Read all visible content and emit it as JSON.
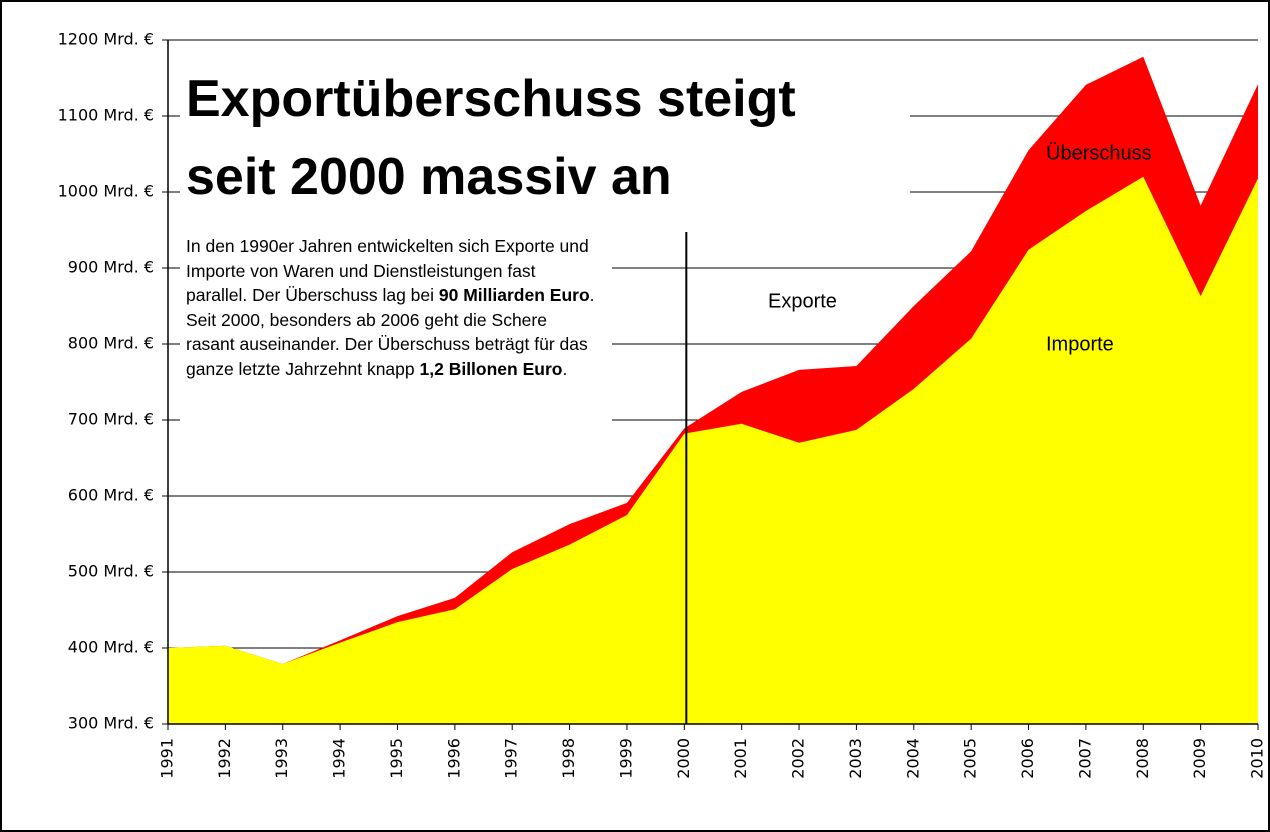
{
  "chart_data": {
    "type": "area",
    "title": "Exportüberschuss steigt seit 2000 massiv an",
    "paragraph": [
      {
        "text": "In den 1990er Jahren  entwickelten sich Exporte und Importe von Waren und Dienstleistungen fast parallel. Der Überschuss lag bei ",
        "bold": false
      },
      {
        "text": "90 Milliarden Euro",
        "bold": true
      },
      {
        "text": ". Seit 2000, besonders ab 2006 geht die Schere rasant auseinander. Der Überschuss beträgt für das ganze letzte Jahrzehnt knapp ",
        "bold": false
      },
      {
        "text": "1,2 Billonen Euro",
        "bold": true
      },
      {
        "text": ".",
        "bold": false
      }
    ],
    "surplus_label": "Überschuss",
    "categories": [
      "1991",
      "1992",
      "1993",
      "1994",
      "1995",
      "1996",
      "1997",
      "1998",
      "1999",
      "2000",
      "2001",
      "2002",
      "2003",
      "2004",
      "2005",
      "2006",
      "2007",
      "2008",
      "2009",
      "2010"
    ],
    "series": [
      {
        "name": "Exporte",
        "color": "#ff0000",
        "values": [
          400,
          403,
          379,
          410,
          442,
          466,
          526,
          563,
          591,
          689,
          737,
          766,
          771,
          850,
          922,
          1055,
          1141,
          1178,
          982,
          1142
        ]
      },
      {
        "name": "Importe",
        "color": "#ffff00",
        "values": [
          400,
          403,
          379,
          407,
          434,
          451,
          504,
          536,
          575,
          682,
          695,
          670,
          687,
          741,
          807,
          924,
          975,
          1020,
          863,
          1018
        ]
      }
    ],
    "ylim": [
      300,
      1200
    ],
    "yticks": [
      {
        "value": 300,
        "label": "300 Mrd. €"
      },
      {
        "value": 400,
        "label": "400 Mrd. €"
      },
      {
        "value": 500,
        "label": "500 Mrd. €"
      },
      {
        "value": 600,
        "label": "600 Mrd. €"
      },
      {
        "value": 700,
        "label": "700 Mrd. €"
      },
      {
        "value": 800,
        "label": "800 Mrd. €"
      },
      {
        "value": 900,
        "label": "900 Mrd. €"
      },
      {
        "value": 1000,
        "label": "1000 Mrd. €"
      },
      {
        "value": 1100,
        "label": "1100 Mrd. €"
      },
      {
        "value": 1200,
        "label": "1200 Mrd. €"
      }
    ],
    "grid": true
  }
}
